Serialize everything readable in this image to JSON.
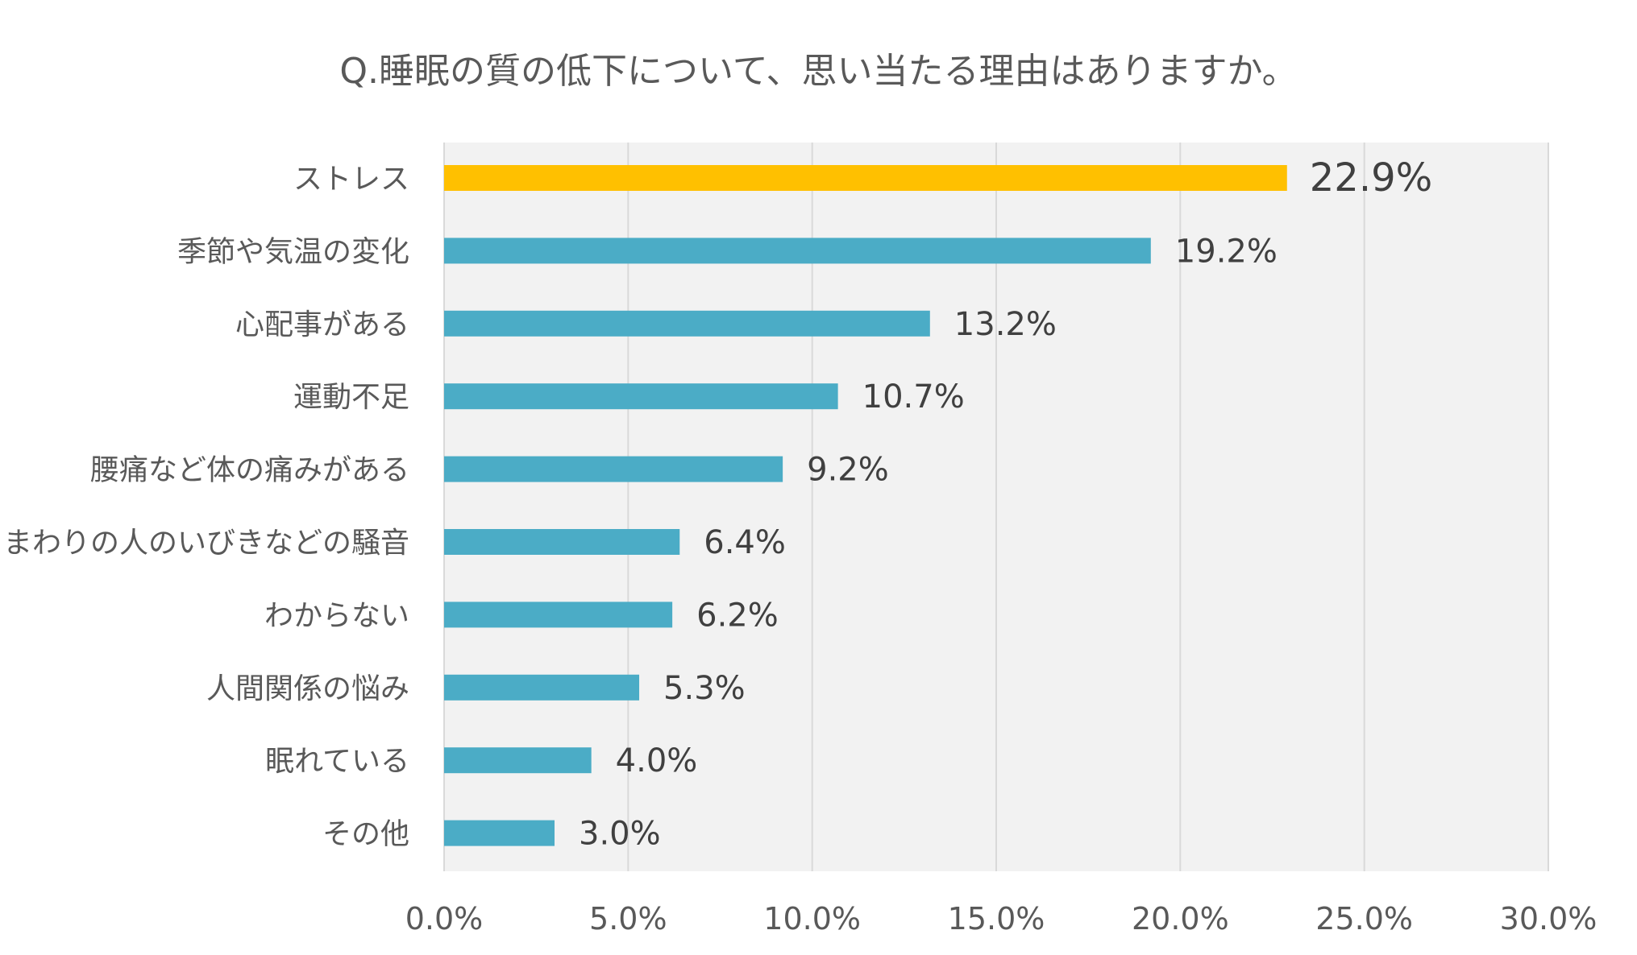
{
  "chart_data": {
    "type": "bar",
    "orientation": "horizontal",
    "title": "Q.睡眠の質の低下について、思い当たる理由はありますか。",
    "categories": [
      "ストレス",
      "季節や気温の変化",
      "心配事がある",
      "運動不足",
      "腰痛など体の痛みがある",
      "まわりの人のいびきなどの騒音",
      "わからない",
      "人間関係の悩み",
      "眠れている",
      "その他"
    ],
    "values": [
      22.9,
      19.2,
      13.2,
      10.7,
      9.2,
      6.4,
      6.2,
      5.3,
      4.0,
      3.0
    ],
    "value_labels": [
      "22.9%",
      "19.2%",
      "13.2%",
      "10.7%",
      "9.2%",
      "6.4%",
      "6.2%",
      "5.3%",
      "4.0%",
      "3.0%"
    ],
    "xlim": [
      0,
      30
    ],
    "x_ticks": [
      0,
      5,
      10,
      15,
      20,
      25,
      30
    ],
    "x_tick_labels": [
      "0.0%",
      "5.0%",
      "10.0%",
      "15.0%",
      "20.0%",
      "25.0%",
      "30.0%"
    ],
    "xlabel": "",
    "ylabel": "",
    "grid": "vertical",
    "highlight_index": 0,
    "colors": {
      "highlight": "#FFC000",
      "bar": "#4BACC6",
      "plot_bg": "#F2F2F2",
      "grid": "#D9D9D9",
      "text": "#404040"
    }
  }
}
